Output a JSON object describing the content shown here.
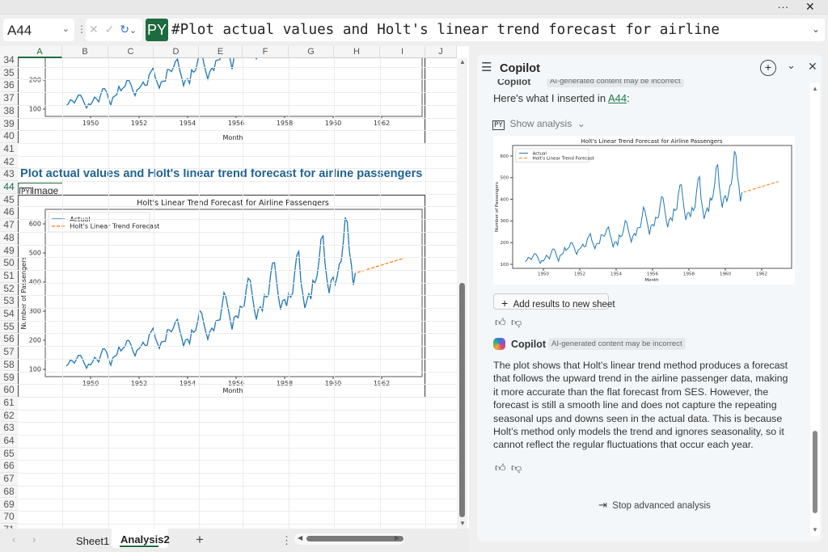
{
  "window": {
    "more_label": "...",
    "close_icon": "close-icon"
  },
  "formula_bar": {
    "name_box": "A44",
    "python_badge": "PY",
    "formula": "#Plot actual values and Holt's linear trend forecast for airline"
  },
  "sheet": {
    "columns": [
      "A",
      "B",
      "C",
      "D",
      "E",
      "F",
      "G",
      "H",
      "I",
      "J"
    ],
    "first_row": 34,
    "last_row": 71,
    "active_cell": "A44",
    "heading_row_43": "Plot actual values and Holt's linear trend forecast for airline passengers",
    "cell_a44": {
      "icon": "PY",
      "value": "Image"
    },
    "tabs": [
      "Sheet1",
      "Analysis2"
    ],
    "active_tab": "Analysis2",
    "add_tab": "+"
  },
  "copilot": {
    "title": "Copilot",
    "prev_sender": "Copilot",
    "prev_badge": "AI-generated content may be incorrect",
    "inserted_text": "Here's what I inserted in ",
    "inserted_link": "A44",
    "inserted_suffix": ":",
    "show_analysis": "Show analysis",
    "add_results": "Add results to new sheet",
    "sender": "Copilot",
    "badge": "AI-generated content may be incorrect",
    "message": "The plot shows that Holt’s linear trend method produces a forecast that follows the upward trend in the airline passenger data, making it more accurate than the flat forecast from SES. However, the forecast is still a smooth line and does not capture the repeating seasonal ups and downs seen in the actual data. This is because Holt’s method only models the trend and ignores seasonality, so it cannot reflect the regular fluctuations that occur each year.",
    "stop_label": "Stop advanced analysis",
    "accent": "#1e6b40"
  },
  "chart_data": {
    "type": "line",
    "title": "Holt's Linear Trend Forecast for Airline Passengers",
    "xlabel": "Month",
    "ylabel": "Number of Passengers",
    "xticks": [
      "1950",
      "1952",
      "1954",
      "1956",
      "1958",
      "1960",
      "1962"
    ],
    "yticks": [
      "100",
      "200",
      "300",
      "400",
      "500",
      "600"
    ],
    "xlim": [
      "1948-06",
      "1963-06"
    ],
    "ylim": [
      80,
      645
    ],
    "grid": false,
    "legend": "top-left",
    "series": [
      {
        "name": "Actual",
        "color": "#1f77b4",
        "style": "solid",
        "start": "1949-01",
        "frequency": "monthly",
        "values": [
          112,
          118,
          132,
          129,
          121,
          135,
          148,
          148,
          136,
          119,
          104,
          118,
          115,
          126,
          141,
          135,
          125,
          149,
          170,
          170,
          158,
          133,
          114,
          140,
          145,
          150,
          178,
          163,
          172,
          178,
          199,
          199,
          184,
          162,
          146,
          166,
          171,
          180,
          193,
          181,
          183,
          218,
          230,
          242,
          209,
          191,
          172,
          194,
          196,
          196,
          236,
          235,
          229,
          243,
          264,
          272,
          237,
          211,
          180,
          201,
          204,
          188,
          235,
          227,
          234,
          264,
          302,
          293,
          259,
          229,
          203,
          229,
          242,
          233,
          267,
          269,
          270,
          315,
          364,
          347,
          312,
          274,
          237,
          278,
          284,
          277,
          317,
          313,
          318,
          374,
          413,
          405,
          355,
          306,
          271,
          306,
          315,
          301,
          356,
          348,
          355,
          422,
          465,
          467,
          404,
          347,
          305,
          336,
          340,
          318,
          362,
          348,
          363,
          435,
          491,
          505,
          404,
          359,
          310,
          337,
          360,
          342,
          406,
          396,
          420,
          472,
          548,
          559,
          463,
          407,
          362,
          405,
          417,
          391,
          419,
          461,
          472,
          535,
          622,
          606,
          508,
          461,
          390,
          432
        ]
      },
      {
        "name": "Holt's Linear Trend Forecast",
        "color": "#ff7f0e",
        "style": "dashed",
        "x": [
          "1961-01",
          "1962-12"
        ],
        "values": [
          433,
          482
        ]
      }
    ]
  }
}
